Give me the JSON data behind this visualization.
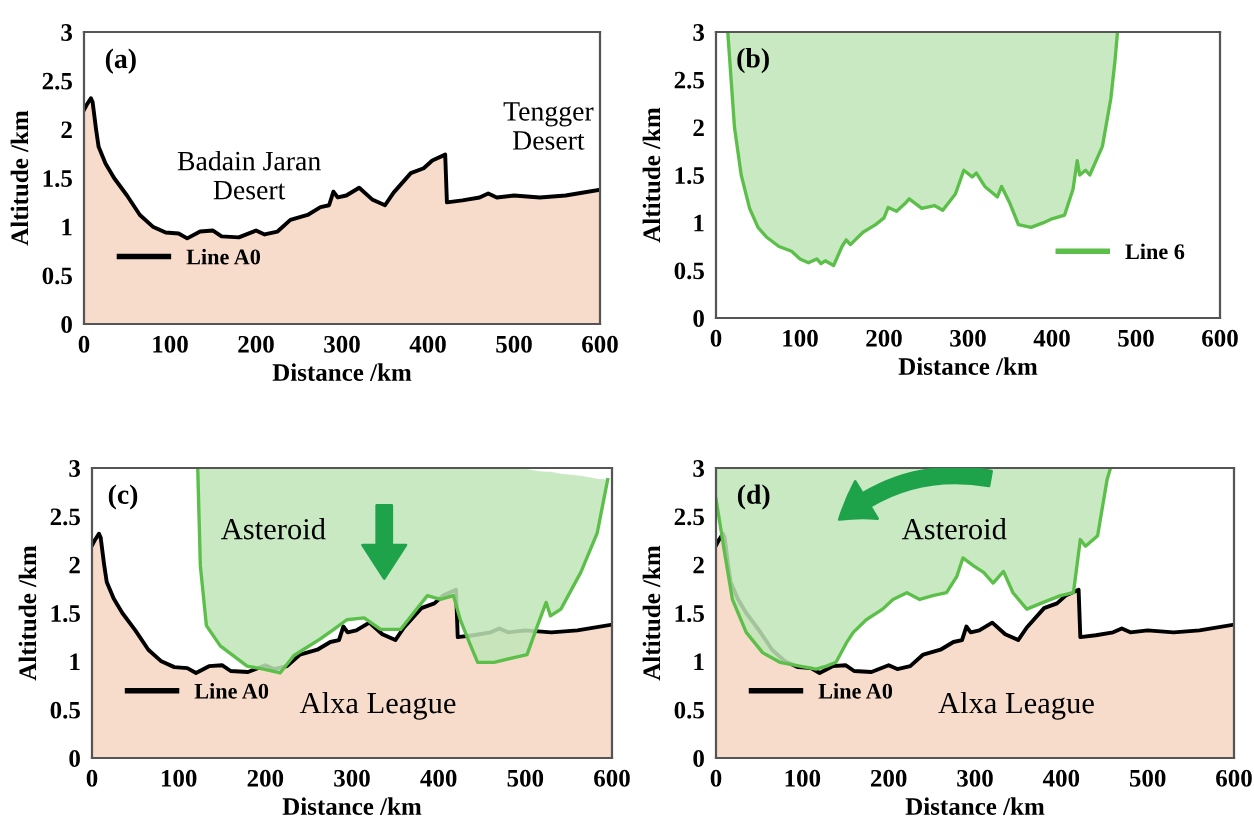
{
  "chart_data": [
    {
      "type": "area",
      "xlabel": "Distance /km",
      "ylabel": "Altitude /km",
      "xlim": [
        0,
        600
      ],
      "ylim": [
        0,
        3
      ],
      "xticks": [
        0,
        100,
        200,
        300,
        400,
        500,
        600
      ],
      "yticks": [
        0,
        0.5,
        1,
        1.5,
        2,
        2.5,
        3
      ],
      "grid": false,
      "legend": "bottom left",
      "marker": "none",
      "line_style": "solid",
      "annotations": [
        "(a)",
        "Badain Jaran\nDesert",
        "Tengger\nDesert"
      ],
      "series": [
        {
          "name": "Line A0",
          "color": "#000000",
          "x": [
            0,
            3,
            8,
            10,
            14,
            17,
            25,
            35,
            50,
            65,
            80,
            95,
            110,
            120,
            135,
            150,
            160,
            180,
            200,
            210,
            225,
            240,
            260,
            275,
            285,
            290,
            295,
            305,
            320,
            335,
            350,
            360,
            380,
            395,
            405,
            420,
            422,
            440,
            460,
            470,
            480,
            500,
            530,
            560,
            600
          ],
          "values": [
            2.2,
            2.25,
            2.32,
            2.28,
            2.0,
            1.82,
            1.65,
            1.5,
            1.32,
            1.12,
            1.0,
            0.94,
            0.93,
            0.88,
            0.95,
            0.96,
            0.9,
            0.89,
            0.96,
            0.92,
            0.95,
            1.07,
            1.12,
            1.2,
            1.22,
            1.36,
            1.3,
            1.32,
            1.4,
            1.28,
            1.22,
            1.35,
            1.55,
            1.6,
            1.68,
            1.74,
            1.25,
            1.27,
            1.3,
            1.34,
            1.3,
            1.32,
            1.3,
            1.32,
            1.38
          ]
        }
      ]
    },
    {
      "type": "area",
      "xlabel": "Distance /km",
      "ylabel": "Altitude /km",
      "xlim": [
        0,
        600
      ],
      "ylim": [
        0,
        3
      ],
      "xticks": [
        0,
        100,
        200,
        300,
        400,
        500,
        600
      ],
      "yticks": [
        0,
        0.5,
        1,
        1.5,
        2,
        2.5,
        3
      ],
      "grid": false,
      "legend": "bottom right",
      "marker": "none",
      "line_style": "solid",
      "annotations": [
        "(b)"
      ],
      "series": [
        {
          "name": "Line 6",
          "type": "line",
          "color": "#5cbf4a",
          "x": [
            14,
            18,
            22,
            30,
            40,
            50,
            60,
            75,
            90,
            100,
            110,
            120,
            125,
            130,
            140,
            150,
            155,
            160,
            175,
            190,
            200,
            205,
            215,
            225,
            230,
            245,
            260,
            270,
            285,
            295,
            305,
            310,
            320,
            335,
            340,
            350,
            360,
            375,
            390,
            400,
            415,
            425,
            430,
            433,
            440,
            445,
            460,
            470,
            475,
            478
          ],
          "values": [
            3,
            2.5,
            2.0,
            1.5,
            1.15,
            0.95,
            0.85,
            0.75,
            0.7,
            0.62,
            0.58,
            0.62,
            0.57,
            0.6,
            0.55,
            0.75,
            0.82,
            0.77,
            0.9,
            0.98,
            1.05,
            1.16,
            1.12,
            1.2,
            1.25,
            1.15,
            1.18,
            1.13,
            1.3,
            1.55,
            1.48,
            1.52,
            1.38,
            1.27,
            1.38,
            1.2,
            0.98,
            0.95,
            1.0,
            1.04,
            1.08,
            1.35,
            1.65,
            1.5,
            1.55,
            1.5,
            1.8,
            2.3,
            2.7,
            3
          ],
          "lower": [
            3,
            2.5,
            2.0,
            1.5,
            1.15,
            0.95,
            0.85,
            0.75,
            0.7,
            0.62,
            0.58,
            0.62,
            0.57,
            0.6,
            0.55,
            0.75,
            0.82,
            0.77,
            0.9,
            0.98,
            1.05,
            1.16,
            1.12,
            1.2,
            1.25,
            1.15,
            1.18,
            1.13,
            1.3,
            1.55,
            1.48,
            1.52,
            1.38,
            1.27,
            1.38,
            1.2,
            0.98,
            0.95,
            1.0,
            1.04,
            1.08,
            1.35,
            1.65,
            1.5,
            1.55,
            1.5,
            1.8,
            2.3,
            2.7,
            3
          ],
          "upper": [
            3,
            3,
            3,
            3,
            3,
            3,
            3,
            3,
            3,
            3,
            3,
            3,
            3,
            3,
            3,
            3,
            3,
            3,
            3,
            3,
            3,
            3,
            3,
            3,
            3,
            3,
            3,
            3,
            3,
            3,
            3,
            3,
            3,
            3,
            3,
            3,
            3,
            3,
            3,
            3,
            3,
            3,
            3,
            3,
            3,
            3,
            3,
            3,
            3,
            3
          ]
        }
      ]
    },
    {
      "type": "area",
      "xlabel": "Distance /km",
      "ylabel": "Altitude /km",
      "xlim": [
        0,
        600
      ],
      "ylim": [
        0,
        3
      ],
      "xticks": [
        0,
        100,
        200,
        300,
        400,
        500,
        600
      ],
      "yticks": [
        0,
        0.5,
        1,
        1.5,
        2,
        2.5,
        3
      ],
      "grid": false,
      "legend": "bottom left",
      "marker": "none",
      "line_style": "solid",
      "annotations": [
        "(c)",
        "Asteroid",
        "Alxa League"
      ],
      "series": [
        {
          "name": "Line A0",
          "color": "#000000",
          "x": [
            0,
            3,
            8,
            10,
            14,
            17,
            25,
            35,
            50,
            65,
            80,
            95,
            110,
            120,
            135,
            150,
            160,
            180,
            200,
            210,
            225,
            240,
            260,
            275,
            285,
            290,
            295,
            305,
            320,
            335,
            350,
            360,
            380,
            395,
            405,
            420,
            422,
            440,
            460,
            470,
            480,
            500,
            530,
            560,
            600
          ],
          "values": [
            2.2,
            2.25,
            2.32,
            2.28,
            2.0,
            1.82,
            1.65,
            1.5,
            1.32,
            1.12,
            1.0,
            0.94,
            0.93,
            0.88,
            0.95,
            0.96,
            0.9,
            0.89,
            0.96,
            0.92,
            0.95,
            1.07,
            1.12,
            1.2,
            1.22,
            1.36,
            1.3,
            1.32,
            1.4,
            1.28,
            1.22,
            1.35,
            1.55,
            1.6,
            1.68,
            1.74,
            1.25,
            1.27,
            1.3,
            1.34,
            1.3,
            1.32,
            1.3,
            1.32,
            1.38
          ]
        },
        {
          "type": "line",
          "color": "#5cbf4a",
          "x": [
            122,
            125,
            132,
            148,
            179,
            198,
            217,
            233,
            263,
            279,
            294,
            314,
            333,
            356,
            371,
            387,
            402,
            417,
            425,
            437,
            445,
            464,
            502,
            514,
            524,
            529,
            541,
            564,
            583,
            595
          ],
          "values": [
            3,
            1.99,
            1.37,
            1.16,
            0.95,
            0.92,
            0.88,
            1.06,
            1.23,
            1.33,
            1.43,
            1.45,
            1.33,
            1.33,
            1.5,
            1.68,
            1.64,
            1.68,
            1.43,
            1.16,
            0.99,
            0.99,
            1.07,
            1.37,
            1.61,
            1.47,
            1.54,
            1.92,
            2.33,
            2.88
          ],
          "lower": [
            3,
            1.99,
            1.37,
            1.16,
            0.95,
            0.92,
            0.88,
            1.06,
            1.23,
            1.33,
            1.43,
            1.45,
            1.33,
            1.33,
            1.5,
            1.68,
            1.64,
            1.68,
            1.43,
            1.16,
            0.99,
            0.99,
            1.07,
            1.37,
            1.61,
            1.47,
            1.54,
            1.92,
            2.33,
            2.88
          ],
          "upper": [
            3,
            3,
            3,
            3,
            3,
            3,
            3,
            3,
            3,
            3,
            3,
            3,
            3,
            3,
            3,
            3,
            3,
            3,
            3,
            3,
            3,
            3,
            2.99,
            2.97,
            2.96,
            2.96,
            2.94,
            2.92,
            2.89,
            2.88
          ]
        }
      ]
    },
    {
      "type": "area",
      "xlabel": "Distance /km",
      "ylabel": "Altitude /km",
      "xlim": [
        0,
        600
      ],
      "ylim": [
        0,
        3
      ],
      "xticks": [
        0,
        100,
        200,
        300,
        400,
        500,
        600
      ],
      "yticks": [
        0,
        0.5,
        1,
        1.5,
        2,
        2.5,
        3
      ],
      "grid": false,
      "legend": "bottom left",
      "marker": "none",
      "line_style": "solid",
      "annotations": [
        "(d)",
        "Asteroid",
        "Alxa League"
      ],
      "series": [
        {
          "name": "Line A0",
          "color": "#000000",
          "x": [
            0,
            3,
            8,
            10,
            14,
            17,
            25,
            35,
            50,
            65,
            80,
            95,
            110,
            120,
            135,
            150,
            160,
            180,
            200,
            210,
            225,
            240,
            260,
            275,
            285,
            290,
            295,
            305,
            320,
            335,
            350,
            360,
            380,
            395,
            405,
            420,
            422,
            440,
            460,
            470,
            480,
            500,
            530,
            560,
            600
          ],
          "values": [
            2.2,
            2.25,
            2.32,
            2.28,
            2.0,
            1.82,
            1.65,
            1.5,
            1.32,
            1.12,
            1.0,
            0.94,
            0.93,
            0.88,
            0.95,
            0.96,
            0.9,
            0.89,
            0.96,
            0.92,
            0.95,
            1.07,
            1.12,
            1.2,
            1.22,
            1.36,
            1.3,
            1.32,
            1.4,
            1.28,
            1.22,
            1.35,
            1.55,
            1.6,
            1.68,
            1.74,
            1.25,
            1.27,
            1.3,
            1.34,
            1.3,
            1.32,
            1.3,
            1.32,
            1.38
          ]
        },
        {
          "type": "line",
          "color": "#5cbf4a",
          "x": [
            0,
            10,
            19,
            35,
            54,
            74,
            97,
            116,
            128,
            139,
            151,
            159,
            174,
            193,
            205,
            221,
            236,
            251,
            267,
            279,
            286,
            298,
            310,
            321,
            333,
            344,
            360,
            379,
            399,
            414,
            422,
            428,
            442,
            453,
            457
          ],
          "values": [
            2.68,
            2.12,
            1.64,
            1.3,
            1.09,
            0.99,
            0.95,
            0.92,
            0.95,
            0.99,
            1.19,
            1.3,
            1.43,
            1.54,
            1.64,
            1.71,
            1.64,
            1.68,
            1.71,
            1.88,
            2.07,
            1.99,
            1.92,
            1.81,
            1.93,
            1.71,
            1.54,
            1.61,
            1.68,
            1.71,
            2.26,
            2.19,
            2.3,
            2.88,
            3
          ],
          "lower": [
            2.68,
            2.12,
            1.64,
            1.3,
            1.09,
            0.99,
            0.95,
            0.92,
            0.95,
            0.99,
            1.19,
            1.3,
            1.43,
            1.54,
            1.64,
            1.71,
            1.64,
            1.68,
            1.71,
            1.88,
            2.07,
            1.99,
            1.92,
            1.81,
            1.93,
            1.71,
            1.54,
            1.61,
            1.68,
            1.71,
            2.26,
            2.19,
            2.3,
            2.88,
            3
          ],
          "upper": [
            3,
            3,
            3,
            3,
            3,
            3,
            3,
            3,
            3,
            3,
            3,
            3,
            3,
            3,
            3,
            3,
            3,
            3,
            3,
            3,
            3,
            3,
            3,
            3,
            3,
            3,
            3,
            3,
            3,
            3,
            3,
            3,
            3,
            3,
            3
          ]
        }
      ]
    }
  ]
}
